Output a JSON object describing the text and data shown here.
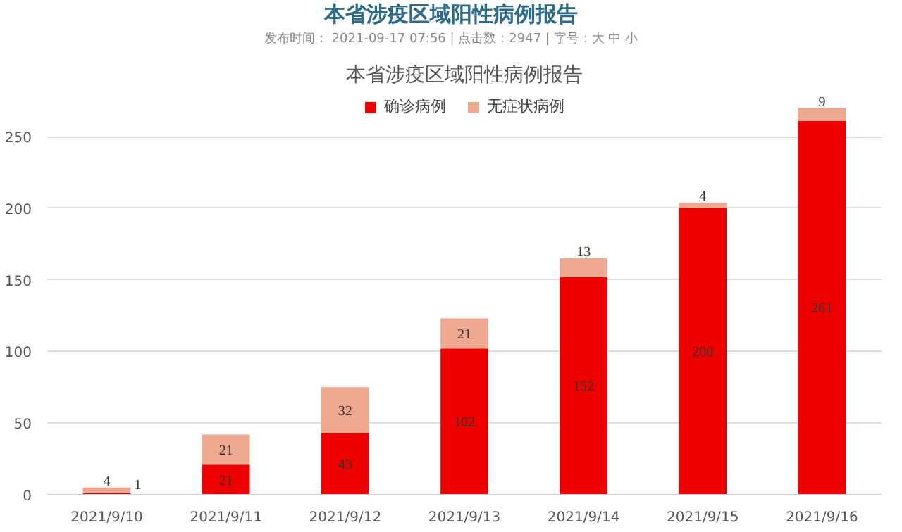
{
  "chart_data": {
    "type": "bar",
    "stacked": true,
    "title": "本省涉疫区域阳性病例报告",
    "subtitle": "发布时间： 2021-09-17 07:56 | 点击数：2947 | 字号：大 中 小",
    "annotations": [
      "本省涉疫区域阳性病例报告"
    ],
    "categories": [
      "2021/9/10",
      "2021/9/11",
      "2021/9/12",
      "2021/9/13",
      "2021/9/14",
      "2021/9/15",
      "2021/9/16"
    ],
    "series": [
      {
        "name": "确诊病例",
        "color": "#ee0000",
        "values": [
          1,
          21,
          43,
          102,
          152,
          200,
          261
        ]
      },
      {
        "name": "无症状病例",
        "color": "#f0a890",
        "values": [
          4,
          21,
          32,
          21,
          13,
          4,
          9
        ]
      }
    ],
    "ylim": [
      0,
      280
    ],
    "yticks": [
      0,
      50,
      100,
      150,
      200,
      250
    ],
    "grid": "y",
    "legend": "top",
    "data_labels": true
  }
}
